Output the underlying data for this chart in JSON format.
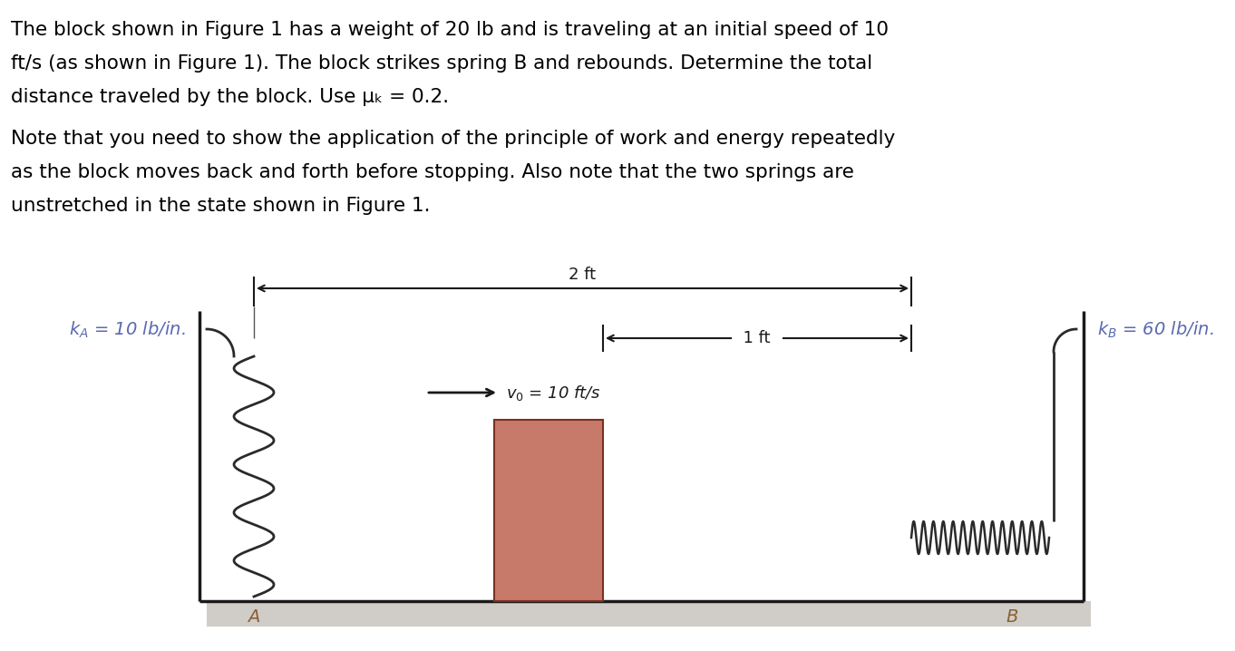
{
  "text_lines": [
    "The block shown in Figure 1 has a weight of 20 lb and is traveling at an initial speed of 10",
    "ft/s (as shown in Figure 1). The block strikes spring B and rebounds. Determine the total",
    "distance traveled by the block. Use μₖ = 0.2.",
    "Note that you need to show the application of the principle of work and energy repeatedly",
    "as the block moves back and forth before stopping. Also note that the two springs are",
    "unstretched in the state shown in Figure 1."
  ],
  "bg_color": "#ffffff",
  "text_color": "#000000",
  "label_color_k": "#5a6ab0",
  "label_color_AB": "#8a6030",
  "kA_text": "$k_A$ = 10 lb/in.",
  "kB_text": "$k_B$ = 60 lb/in.",
  "label_A": "$A$",
  "label_B": "$B$",
  "v0_text": "$v_0$ = 10 ft/s",
  "dim_2ft": "2 ft",
  "dim_1ft": "1 ft",
  "block_color": "#c87a6a",
  "block_edge_color": "#7a3020",
  "shadow_color": "#d0ccc8",
  "wall_color": "#1a1a1a",
  "spring_color": "#2a2a2a"
}
